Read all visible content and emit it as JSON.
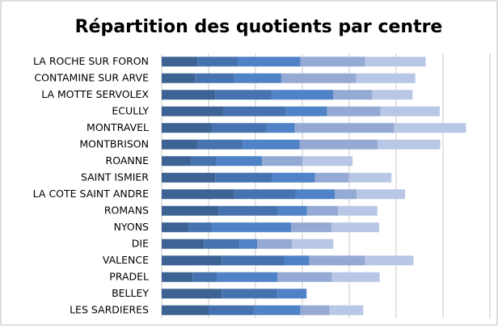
{
  "chart_data": {
    "type": "stacked-bar",
    "orientation": "horizontal",
    "title": "Répartition des quotients par centre",
    "categories": [
      "LA ROCHE SUR FORON",
      "CONTAMINE SUR ARVE",
      "LA MOTTE SERVOLEX",
      "ECULLY",
      "MONTRAVEL",
      "MONTBRISON",
      "ROANNE",
      "SAINT ISMIER",
      "LA COTE SAINT ANDRE",
      "ROMANS",
      "NYONS",
      "DIE",
      "VALENCE",
      "PRADEL",
      "BELLEY",
      "LES SARDIERES"
    ],
    "series": [
      {
        "color": "#3c6394",
        "values": [
          7.6,
          7.1,
          11.4,
          13.1,
          10.7,
          7.6,
          6.2,
          11.4,
          15.5,
          12.2,
          5.7,
          9.0,
          12.8,
          6.6,
          12.8,
          10.0
        ]
      },
      {
        "color": "#4673b0",
        "values": [
          8.6,
          8.4,
          12.1,
          13.4,
          11.7,
          9.7,
          5.5,
          12.2,
          13.1,
          12.6,
          5.0,
          7.6,
          13.4,
          5.2,
          11.9,
          9.8
        ]
      },
      {
        "color": "#4f82c6",
        "values": [
          13.4,
          10.0,
          13.1,
          8.8,
          6.0,
          12.1,
          9.7,
          9.1,
          8.3,
          6.2,
          16.9,
          3.8,
          5.3,
          12.9,
          6.2,
          9.8
        ]
      },
      {
        "color": "#94aad4",
        "values": [
          13.8,
          16.0,
          8.3,
          11.4,
          21.2,
          16.7,
          8.6,
          7.2,
          4.7,
          6.6,
          8.6,
          7.4,
          11.9,
          11.6,
          0,
          6.2
        ]
      },
      {
        "color": "#b9c7e6",
        "values": [
          12.9,
          12.6,
          8.6,
          12.6,
          15.3,
          13.3,
          10.7,
          9.1,
          10.3,
          8.4,
          10.2,
          8.8,
          10.3,
          10.2,
          0,
          7.2
        ]
      }
    ],
    "xlim": [
      0,
      70
    ],
    "xticks": [
      0,
      10,
      20,
      30,
      40,
      50,
      60,
      70
    ],
    "grid": true
  }
}
